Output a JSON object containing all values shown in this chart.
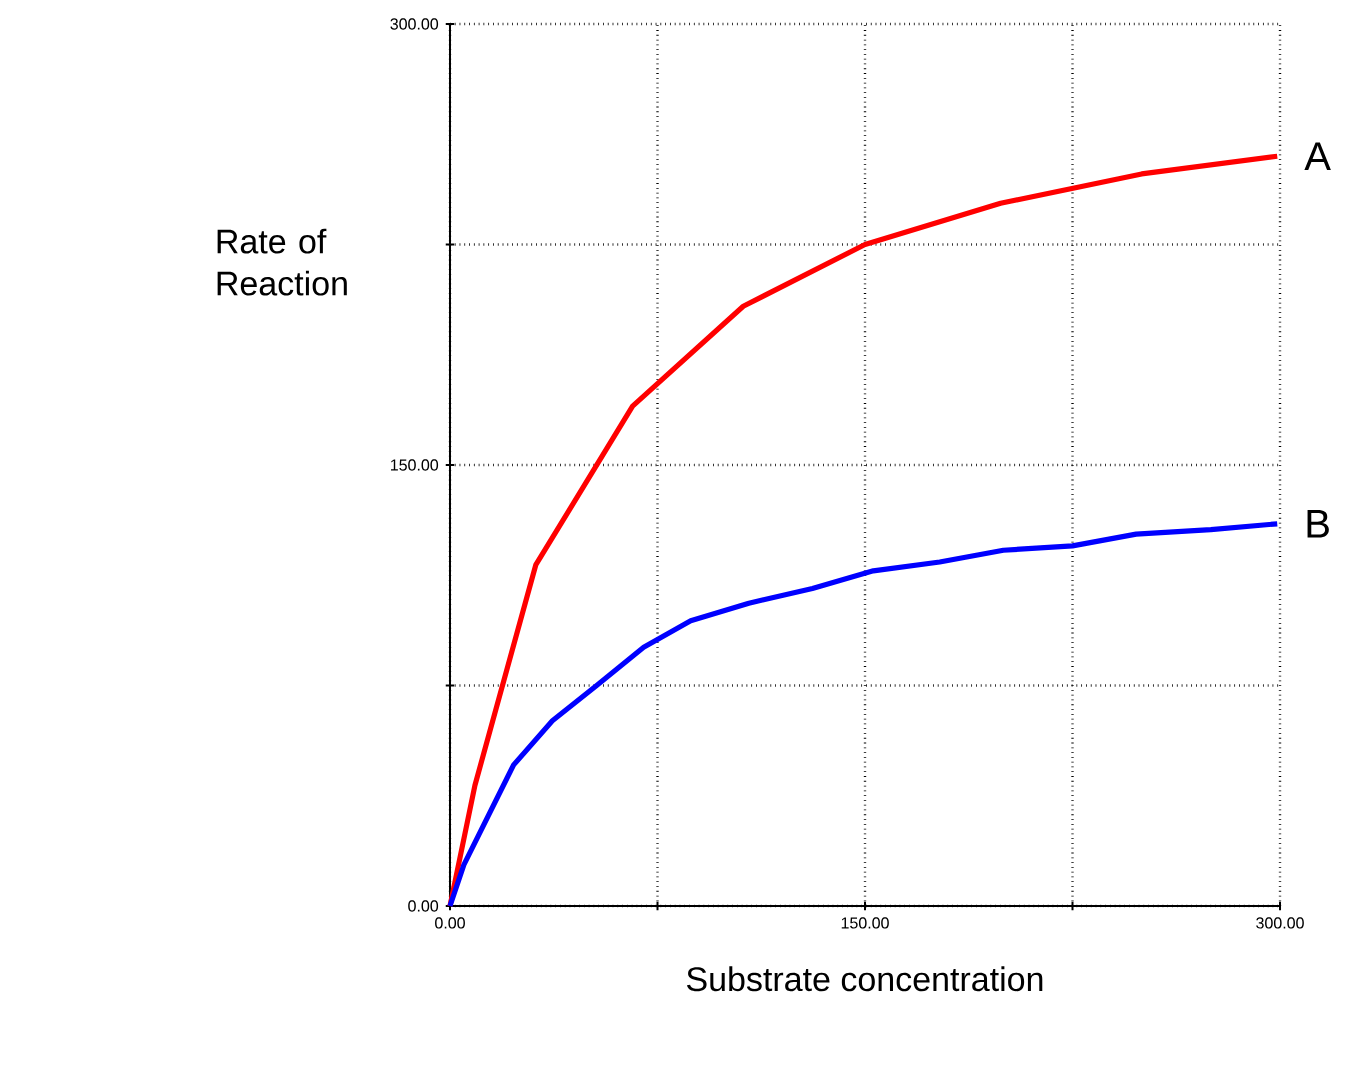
{
  "chart_data": {
    "type": "line",
    "xlabel": "Substrate concentration",
    "ylabel": "Rate of Reaction",
    "xlim": [
      0,
      300
    ],
    "ylim": [
      0,
      300
    ],
    "xticks": [
      {
        "value": 0,
        "label": "0.00"
      },
      {
        "value": 75,
        "label": null
      },
      {
        "value": 150,
        "label": "150.00"
      },
      {
        "value": 225,
        "label": null
      },
      {
        "value": 300,
        "label": "300.00"
      }
    ],
    "yticks": [
      {
        "value": 0,
        "label": "0.00"
      },
      {
        "value": 75,
        "label": null
      },
      {
        "value": 150,
        "label": "150.00"
      },
      {
        "value": 225,
        "label": null
      },
      {
        "value": 300,
        "label": "300.00"
      }
    ],
    "grid": true,
    "line_style": "solid",
    "series": [
      {
        "name": "A",
        "color": "#ff0000",
        "x": [
          0,
          9,
          31,
          66,
          106,
          150,
          199,
          250,
          299
        ],
        "values": [
          0,
          41,
          116,
          170,
          204,
          225,
          239,
          249,
          255
        ]
      },
      {
        "name": "B",
        "color": "#0000ff",
        "x": [
          0,
          5,
          23,
          37,
          53,
          70,
          87,
          108,
          131,
          153,
          177,
          200,
          225,
          248,
          275,
          299
        ],
        "values": [
          0,
          14,
          48,
          63,
          75,
          88,
          97,
          103,
          108,
          114,
          117,
          121,
          122.5,
          126.5,
          128,
          130
        ]
      }
    ]
  }
}
